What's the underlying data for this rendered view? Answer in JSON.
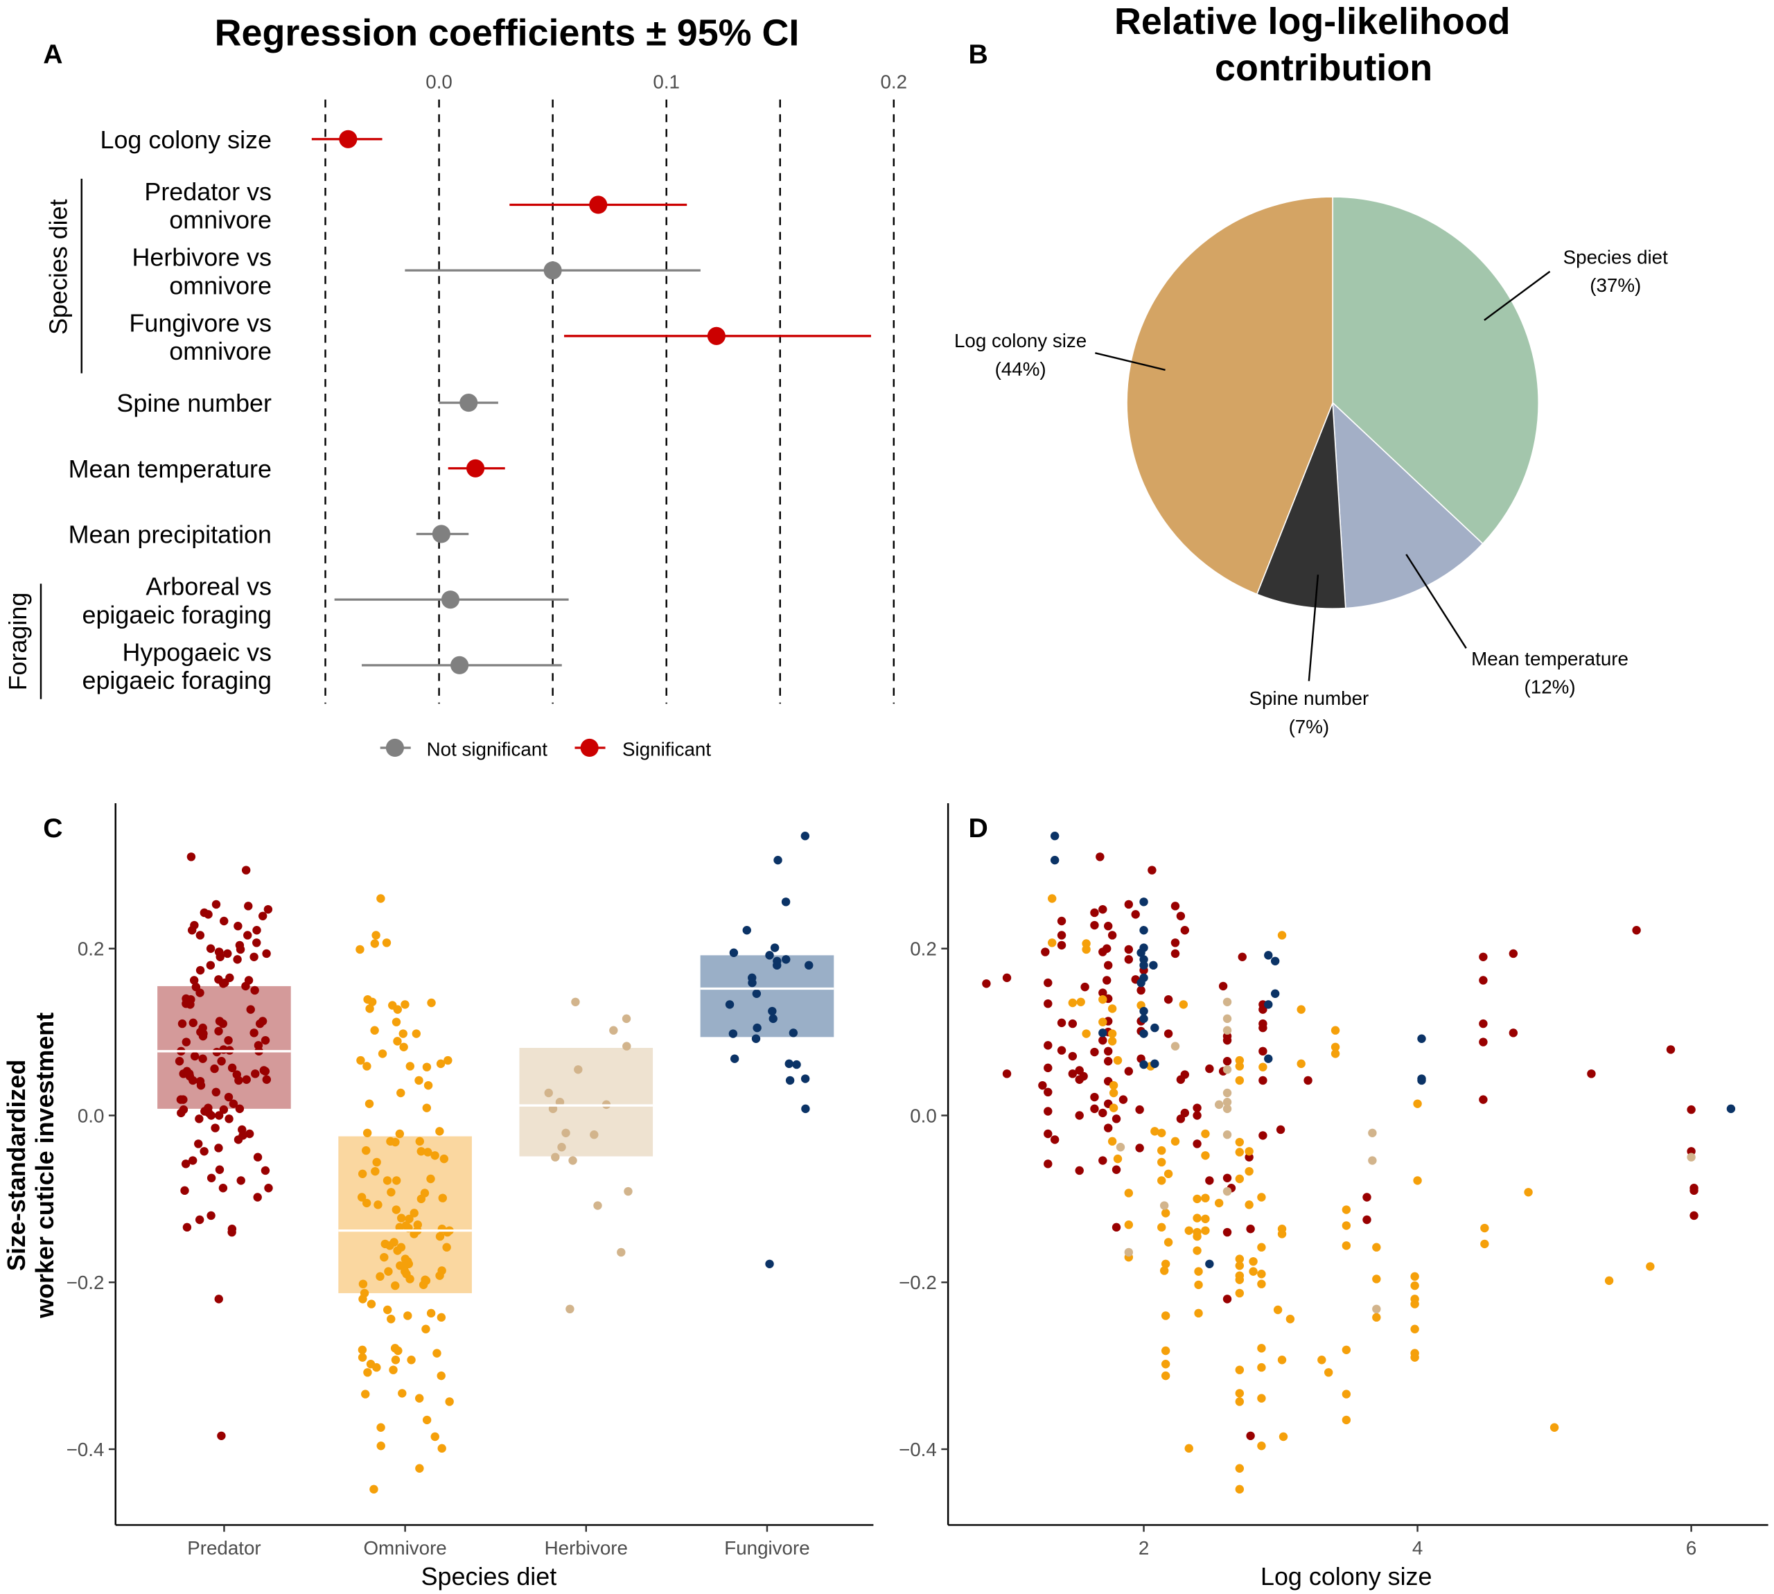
{
  "panels": [
    "A",
    "B",
    "C",
    "D"
  ],
  "chart_data": [
    {
      "type": "forest",
      "panel": "A",
      "title": "Regression coefficients ± 95% CI",
      "xticks": [
        "0.0",
        "0.1",
        "0.2"
      ],
      "xlim": [
        -0.055,
        0.2
      ],
      "reference_lines": [
        -0.05,
        0,
        0.05,
        0.1,
        0.15,
        0.2
      ],
      "groups": [
        {
          "label": "Species diet",
          "rows": [
            1,
            2,
            3
          ]
        },
        {
          "label": "Foraging",
          "rows": [
            7,
            8
          ]
        }
      ],
      "rows": [
        {
          "label": [
            "Log colony size"
          ],
          "estimate": -0.04,
          "lower": -0.056,
          "upper": -0.025,
          "significant": true
        },
        {
          "label": [
            "Predator vs",
            "omnivore"
          ],
          "estimate": 0.07,
          "lower": 0.031,
          "upper": 0.109,
          "significant": true
        },
        {
          "label": [
            "Herbivore vs",
            "omnivore"
          ],
          "estimate": 0.05,
          "lower": -0.015,
          "upper": 0.115,
          "significant": false
        },
        {
          "label": [
            "Fungivore vs",
            "omnivore"
          ],
          "estimate": 0.122,
          "lower": 0.055,
          "upper": 0.19,
          "significant": true
        },
        {
          "label": [
            "Spine number"
          ],
          "estimate": 0.013,
          "lower": 0.0,
          "upper": 0.026,
          "significant": false
        },
        {
          "label": [
            "Mean temperature"
          ],
          "estimate": 0.016,
          "lower": 0.004,
          "upper": 0.029,
          "significant": true
        },
        {
          "label": [
            "Mean precipitation"
          ],
          "estimate": 0.001,
          "lower": -0.01,
          "upper": 0.013,
          "significant": false
        },
        {
          "label": [
            "Arboreal vs",
            "epigaeic foraging"
          ],
          "estimate": 0.005,
          "lower": -0.046,
          "upper": 0.057,
          "significant": false
        },
        {
          "label": [
            "Hypogaeic vs",
            "epigaeic foraging"
          ],
          "estimate": 0.009,
          "lower": -0.034,
          "upper": 0.054,
          "significant": false
        }
      ],
      "legend": [
        {
          "label": "Not significant",
          "color": "#808080"
        },
        {
          "label": "Significant",
          "color": "#cc0000"
        }
      ],
      "legend_position": "bottom"
    },
    {
      "type": "pie",
      "panel": "B",
      "title": [
        "Relative log-likelihood",
        "contribution"
      ],
      "slices": [
        {
          "label": "Species diet",
          "pct_label": "(37%)",
          "value": 37,
          "color": "#a3c6ac"
        },
        {
          "label": "Mean temperature",
          "pct_label": "(12%)",
          "value": 12,
          "color": "#a3afc6"
        },
        {
          "label": "Spine number",
          "pct_label": "(7%)",
          "value": 7,
          "color": "#333333"
        },
        {
          "label": "Log colony size",
          "pct_label": "(44%)",
          "value": 44,
          "color": "#d4a464"
        }
      ]
    },
    {
      "type": "scatter",
      "panel": "C",
      "xlabel": "Species diet",
      "ylabel": [
        "Size-standardized",
        "worker cuticle investment"
      ],
      "categories": [
        "Predator",
        "Omnivore",
        "Herbivore",
        "Fungivore"
      ],
      "yticks": [
        "0.2",
        "0.0",
        "−0.2",
        "−0.4"
      ],
      "ylim": [
        -0.47,
        0.37
      ],
      "bands": [
        {
          "category": "Predator",
          "mean": 0.077,
          "lower": 0.008,
          "upper": 0.155,
          "fill": "#d49a9a"
        },
        {
          "category": "Omnivore",
          "mean": -0.138,
          "lower": -0.213,
          "upper": -0.025,
          "fill": "#fad7a0"
        },
        {
          "category": "Herbivore",
          "mean": 0.012,
          "lower": -0.049,
          "upper": 0.081,
          "fill": "#eee2d0"
        },
        {
          "category": "Fungivore",
          "mean": 0.152,
          "lower": 0.094,
          "upper": 0.192,
          "fill": "#9aafc7"
        }
      ]
    },
    {
      "type": "scatter",
      "panel": "D",
      "xlabel": "Log colony size",
      "ylabel": "",
      "xticks": [
        "2",
        "4",
        "6"
      ],
      "yticks": [
        "0.2",
        "0.0",
        "−0.2",
        "−0.4"
      ],
      "xlim": [
        0.7,
        6.45
      ],
      "ylim": [
        -0.47,
        0.37
      ]
    }
  ],
  "series_colors": {
    "Predator": "#990000",
    "Omnivore": "#f5a00a",
    "Herbivore": "#d2b48c",
    "Fungivore": "#0b3366"
  },
  "points": {
    "Predator": [
      [
        0.85,
        0.158
      ],
      [
        1.0,
        0.165
      ],
      [
        1.0,
        0.05
      ],
      [
        1.26,
        0.036
      ],
      [
        1.28,
        0.196
      ],
      [
        1.3,
        0.159
      ],
      [
        1.3,
        0.134
      ],
      [
        1.3,
        0.084
      ],
      [
        1.3,
        0.057
      ],
      [
        1.3,
        0.028
      ],
      [
        1.3,
        0.005
      ],
      [
        1.3,
        -0.022
      ],
      [
        1.35,
        -0.029
      ],
      [
        1.3,
        -0.058
      ],
      [
        1.4,
        0.233
      ],
      [
        1.4,
        0.216
      ],
      [
        1.4,
        0.204
      ],
      [
        1.4,
        0.111
      ],
      [
        1.4,
        0.078
      ],
      [
        1.48,
        0.11
      ],
      [
        1.48,
        0.071
      ],
      [
        1.48,
        0.05
      ],
      [
        1.53,
        0.054
      ],
      [
        1.53,
        0.043
      ],
      [
        1.56,
        0.047
      ],
      [
        1.53,
        0.0
      ],
      [
        1.53,
        -0.066
      ],
      [
        1.57,
        0.154
      ],
      [
        1.64,
        0.076
      ],
      [
        1.64,
        0.022
      ],
      [
        1.64,
        0.008
      ],
      [
        1.64,
        0.243
      ],
      [
        1.64,
        0.228
      ],
      [
        1.7,
        0.247
      ],
      [
        1.7,
        0.196
      ],
      [
        1.7,
        0.147
      ],
      [
        1.7,
        0.09
      ],
      [
        1.7,
        0.003
      ],
      [
        1.7,
        -0.054
      ],
      [
        1.73,
        0.162
      ],
      [
        1.73,
        0.2
      ],
      [
        1.74,
        0.18
      ],
      [
        1.74,
        0.14
      ],
      [
        1.74,
        0.113
      ],
      [
        1.74,
        0.1
      ],
      [
        1.74,
        0.077
      ],
      [
        1.74,
        0.065
      ],
      [
        1.74,
        0.041
      ],
      [
        1.74,
        0.014
      ],
      [
        1.74,
        -0.015
      ],
      [
        1.77,
        0.216
      ],
      [
        1.74,
        0.227
      ],
      [
        1.68,
        0.31
      ],
      [
        1.8,
        -0.004
      ],
      [
        1.8,
        -0.065
      ],
      [
        1.8,
        -0.134
      ],
      [
        1.85,
        0.019
      ],
      [
        1.89,
        0.253
      ],
      [
        1.89,
        0.199
      ],
      [
        1.89,
        0.187
      ],
      [
        1.89,
        0.053
      ],
      [
        1.94,
        0.241
      ],
      [
        1.94,
        0.163
      ],
      [
        1.97,
        0.007
      ],
      [
        1.97,
        -0.039
      ],
      [
        1.98,
        0.15
      ],
      [
        1.98,
        0.113
      ],
      [
        1.98,
        0.101
      ],
      [
        1.98,
        0.068
      ],
      [
        2.0,
        0.174
      ],
      [
        2.06,
        0.294
      ],
      [
        2.18,
        0.139
      ],
      [
        2.18,
        0.098
      ],
      [
        2.23,
        0.251
      ],
      [
        2.23,
        0.207
      ],
      [
        2.23,
        0.194
      ],
      [
        2.27,
        0.239
      ],
      [
        2.3,
        0.222
      ],
      [
        2.27,
        0.043
      ],
      [
        2.3,
        0.049
      ],
      [
        2.27,
        -0.004
      ],
      [
        2.3,
        0.003
      ],
      [
        2.39,
        0.009
      ],
      [
        2.39,
        0.0
      ],
      [
        2.39,
        -0.034
      ],
      [
        2.48,
        0.056
      ],
      [
        2.48,
        -0.078
      ],
      [
        2.58,
        0.155
      ],
      [
        2.61,
        0.095
      ],
      [
        2.61,
        0.09
      ],
      [
        2.61,
        0.065
      ],
      [
        2.61,
        -0.075
      ],
      [
        2.61,
        -0.14
      ],
      [
        2.61,
        -0.22
      ],
      [
        2.58,
        0.053
      ],
      [
        2.64,
        -0.087
      ],
      [
        2.72,
        0.19
      ],
      [
        2.77,
        -0.05
      ],
      [
        2.78,
        -0.136
      ],
      [
        2.78,
        -0.384
      ],
      [
        2.87,
        0.133
      ],
      [
        2.87,
        0.127
      ],
      [
        2.87,
        0.11
      ],
      [
        2.87,
        0.105
      ],
      [
        2.87,
        0.077
      ],
      [
        2.87,
        0.042
      ],
      [
        2.87,
        -0.024
      ],
      [
        3.0,
        -0.017
      ],
      [
        3.2,
        0.042
      ],
      [
        3.63,
        -0.098
      ],
      [
        3.63,
        -0.125
      ],
      [
        4.48,
        0.19
      ],
      [
        4.48,
        0.162
      ],
      [
        4.48,
        0.11
      ],
      [
        4.48,
        0.088
      ],
      [
        4.48,
        0.019
      ],
      [
        4.7,
        0.194
      ],
      [
        4.7,
        0.099
      ],
      [
        5.27,
        0.05
      ],
      [
        5.6,
        0.222
      ],
      [
        5.85,
        0.079
      ],
      [
        6.0,
        0.007
      ],
      [
        6.0,
        -0.043
      ],
      [
        6.02,
        -0.087
      ],
      [
        6.02,
        -0.09
      ],
      [
        6.02,
        -0.12
      ]
    ],
    "Omnivore": [
      [
        1.33,
        0.26
      ],
      [
        1.33,
        0.207
      ],
      [
        1.48,
        0.135
      ],
      [
        1.54,
        0.136
      ],
      [
        1.58,
        0.206
      ],
      [
        1.58,
        0.199
      ],
      [
        1.58,
        0.098
      ],
      [
        1.7,
        0.139
      ],
      [
        1.7,
        0.112
      ],
      [
        1.77,
        0.128
      ],
      [
        1.77,
        0.098
      ],
      [
        1.77,
        0.089
      ],
      [
        1.81,
        0.066
      ],
      [
        1.78,
        0.036
      ],
      [
        1.78,
        0.027
      ],
      [
        1.78,
        0.009
      ],
      [
        1.77,
        -0.031
      ],
      [
        1.81,
        -0.052
      ],
      [
        1.89,
        -0.093
      ],
      [
        1.89,
        -0.131
      ],
      [
        1.89,
        -0.17
      ],
      [
        1.98,
        0.132
      ],
      [
        2.05,
        0.059
      ],
      [
        2.08,
        -0.019
      ],
      [
        2.13,
        -0.021
      ],
      [
        2.13,
        -0.042
      ],
      [
        2.13,
        -0.056
      ],
      [
        2.13,
        -0.078
      ],
      [
        2.18,
        -0.07
      ],
      [
        2.16,
        -0.117
      ],
      [
        2.13,
        -0.134
      ],
      [
        2.18,
        -0.152
      ],
      [
        2.16,
        -0.178
      ],
      [
        2.15,
        -0.186
      ],
      [
        2.16,
        -0.24
      ],
      [
        2.16,
        -0.282
      ],
      [
        2.16,
        -0.298
      ],
      [
        2.16,
        -0.312
      ],
      [
        2.23,
        -0.031
      ],
      [
        2.29,
        0.133
      ],
      [
        2.33,
        -0.399
      ],
      [
        2.39,
        -0.1
      ],
      [
        2.39,
        -0.123
      ],
      [
        2.39,
        -0.14
      ],
      [
        2.39,
        -0.145
      ],
      [
        2.39,
        -0.162
      ],
      [
        2.4,
        -0.187
      ],
      [
        2.4,
        -0.203
      ],
      [
        2.4,
        -0.237
      ],
      [
        2.45,
        -0.099
      ],
      [
        2.45,
        -0.124
      ],
      [
        2.45,
        -0.138
      ],
      [
        2.33,
        -0.138
      ],
      [
        2.45,
        -0.048
      ],
      [
        2.45,
        -0.022
      ],
      [
        2.55,
        -0.105
      ],
      [
        2.7,
        0.066
      ],
      [
        2.7,
        0.059
      ],
      [
        2.7,
        0.042
      ],
      [
        2.7,
        -0.032
      ],
      [
        2.7,
        -0.044
      ],
      [
        2.7,
        -0.076
      ],
      [
        2.7,
        -0.172
      ],
      [
        2.7,
        -0.18
      ],
      [
        2.7,
        -0.192
      ],
      [
        2.7,
        -0.197
      ],
      [
        2.7,
        -0.213
      ],
      [
        2.7,
        -0.305
      ],
      [
        2.7,
        -0.333
      ],
      [
        2.7,
        -0.343
      ],
      [
        2.7,
        -0.423
      ],
      [
        2.7,
        -0.448
      ],
      [
        2.77,
        -0.043
      ],
      [
        2.77,
        -0.067
      ],
      [
        2.77,
        -0.107
      ],
      [
        2.8,
        -0.175
      ],
      [
        2.8,
        -0.187
      ],
      [
        2.86,
        -0.098
      ],
      [
        2.86,
        -0.158
      ],
      [
        2.86,
        -0.19
      ],
      [
        2.86,
        -0.202
      ],
      [
        2.86,
        -0.279
      ],
      [
        2.86,
        -0.302
      ],
      [
        2.86,
        -0.339
      ],
      [
        2.86,
        -0.396
      ],
      [
        2.87,
        0.058
      ],
      [
        2.98,
        -0.233
      ],
      [
        3.01,
        -0.136
      ],
      [
        3.01,
        -0.142
      ],
      [
        3.01,
        -0.293
      ],
      [
        3.02,
        -0.385
      ],
      [
        3.01,
        0.216
      ],
      [
        3.07,
        -0.244
      ],
      [
        3.15,
        0.127
      ],
      [
        3.15,
        0.062
      ],
      [
        3.3,
        -0.293
      ],
      [
        3.35,
        -0.308
      ],
      [
        3.4,
        0.102
      ],
      [
        3.4,
        0.082
      ],
      [
        3.4,
        0.074
      ],
      [
        3.48,
        -0.113
      ],
      [
        3.48,
        -0.132
      ],
      [
        3.48,
        -0.156
      ],
      [
        3.48,
        -0.281
      ],
      [
        3.48,
        -0.334
      ],
      [
        3.48,
        -0.365
      ],
      [
        3.7,
        -0.158
      ],
      [
        3.7,
        -0.196
      ],
      [
        3.7,
        -0.242
      ],
      [
        4.0,
        0.014
      ],
      [
        4.0,
        -0.078
      ],
      [
        3.98,
        -0.193
      ],
      [
        3.98,
        -0.204
      ],
      [
        3.98,
        -0.22
      ],
      [
        3.98,
        -0.226
      ],
      [
        3.98,
        -0.256
      ],
      [
        3.98,
        -0.285
      ],
      [
        3.98,
        -0.29
      ],
      [
        4.49,
        -0.135
      ],
      [
        4.49,
        -0.154
      ],
      [
        4.81,
        -0.092
      ],
      [
        5.0,
        -0.374
      ],
      [
        5.4,
        -0.198
      ],
      [
        5.7,
        -0.181
      ]
    ],
    "Herbivore": [
      [
        1.83,
        -0.038
      ],
      [
        2.15,
        -0.108
      ],
      [
        1.89,
        -0.164
      ],
      [
        2.23,
        0.083
      ],
      [
        2.61,
        0.136
      ],
      [
        2.61,
        0.116
      ],
      [
        2.61,
        0.102
      ],
      [
        2.61,
        0.055
      ],
      [
        2.61,
        0.027
      ],
      [
        2.61,
        0.016
      ],
      [
        2.61,
        0.008
      ],
      [
        2.55,
        0.013
      ],
      [
        2.61,
        -0.023
      ],
      [
        2.61,
        -0.091
      ],
      [
        3.67,
        -0.021
      ],
      [
        3.67,
        -0.054
      ],
      [
        3.7,
        -0.232
      ],
      [
        6.0,
        -0.05
      ]
    ],
    "Fungivore": [
      [
        1.35,
        0.335
      ],
      [
        1.35,
        0.306
      ],
      [
        1.7,
        0.099
      ],
      [
        2.0,
        0.256
      ],
      [
        2.0,
        0.222
      ],
      [
        2.0,
        0.201
      ],
      [
        1.98,
        0.195
      ],
      [
        2.0,
        0.187
      ],
      [
        2.0,
        0.18
      ],
      [
        2.07,
        0.18
      ],
      [
        2.0,
        0.165
      ],
      [
        1.98,
        0.159
      ],
      [
        2.0,
        0.125
      ],
      [
        2.0,
        0.116
      ],
      [
        2.0,
        0.098
      ],
      [
        2.08,
        0.105
      ],
      [
        2.0,
        0.061
      ],
      [
        2.08,
        0.062
      ],
      [
        2.48,
        -0.178
      ],
      [
        2.91,
        0.192
      ],
      [
        2.96,
        0.185
      ],
      [
        2.96,
        0.146
      ],
      [
        2.91,
        0.133
      ],
      [
        2.91,
        0.068
      ],
      [
        4.03,
        0.092
      ],
      [
        4.03,
        0.044
      ],
      [
        4.03,
        0.042
      ],
      [
        6.29,
        0.008
      ]
    ]
  }
}
